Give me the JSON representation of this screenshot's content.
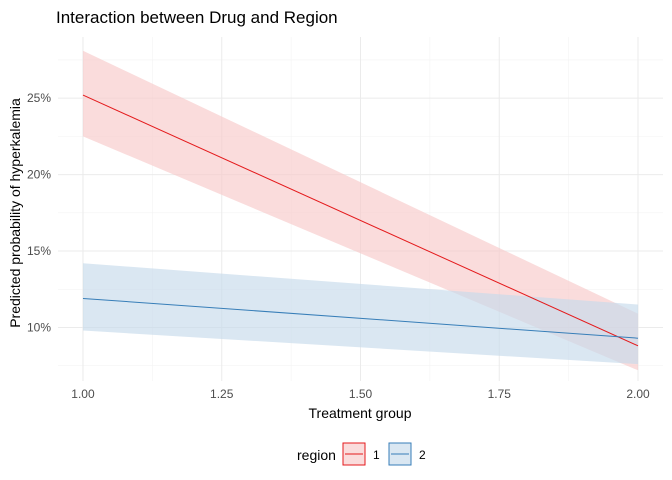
{
  "chart_data": {
    "type": "line",
    "title": "Interaction between Drug and Region",
    "xlabel": "Treatment group",
    "ylabel": "Predicted probability of hyperkalemia",
    "xlim": [
      0.955,
      2.045
    ],
    "ylim": [
      0.065,
      0.29
    ],
    "x_ticks": [
      1.0,
      1.25,
      1.5,
      1.75,
      2.0
    ],
    "x_tick_labels": [
      "1.00",
      "1.25",
      "1.50",
      "1.75",
      "2.00"
    ],
    "y_ticks": [
      0.1,
      0.15,
      0.2,
      0.25
    ],
    "y_tick_labels": [
      "10%",
      "15%",
      "20%",
      "25%"
    ],
    "grid": true,
    "legend": {
      "title": "region",
      "position": "bottom"
    },
    "series": [
      {
        "name": "1",
        "color": "#E41A1C",
        "ribbon_color": "#F8C9CA",
        "x": [
          1.0,
          2.0
        ],
        "y": [
          0.252,
          0.088
        ],
        "ci_low": [
          0.225,
          0.072
        ],
        "ci_high": [
          0.281,
          0.109
        ]
      },
      {
        "name": "2",
        "color": "#377EB8",
        "ribbon_color": "#C6DAEB",
        "x": [
          1.0,
          2.0
        ],
        "y": [
          0.119,
          0.093
        ],
        "ci_low": [
          0.098,
          0.076
        ],
        "ci_high": [
          0.142,
          0.115
        ]
      }
    ]
  }
}
